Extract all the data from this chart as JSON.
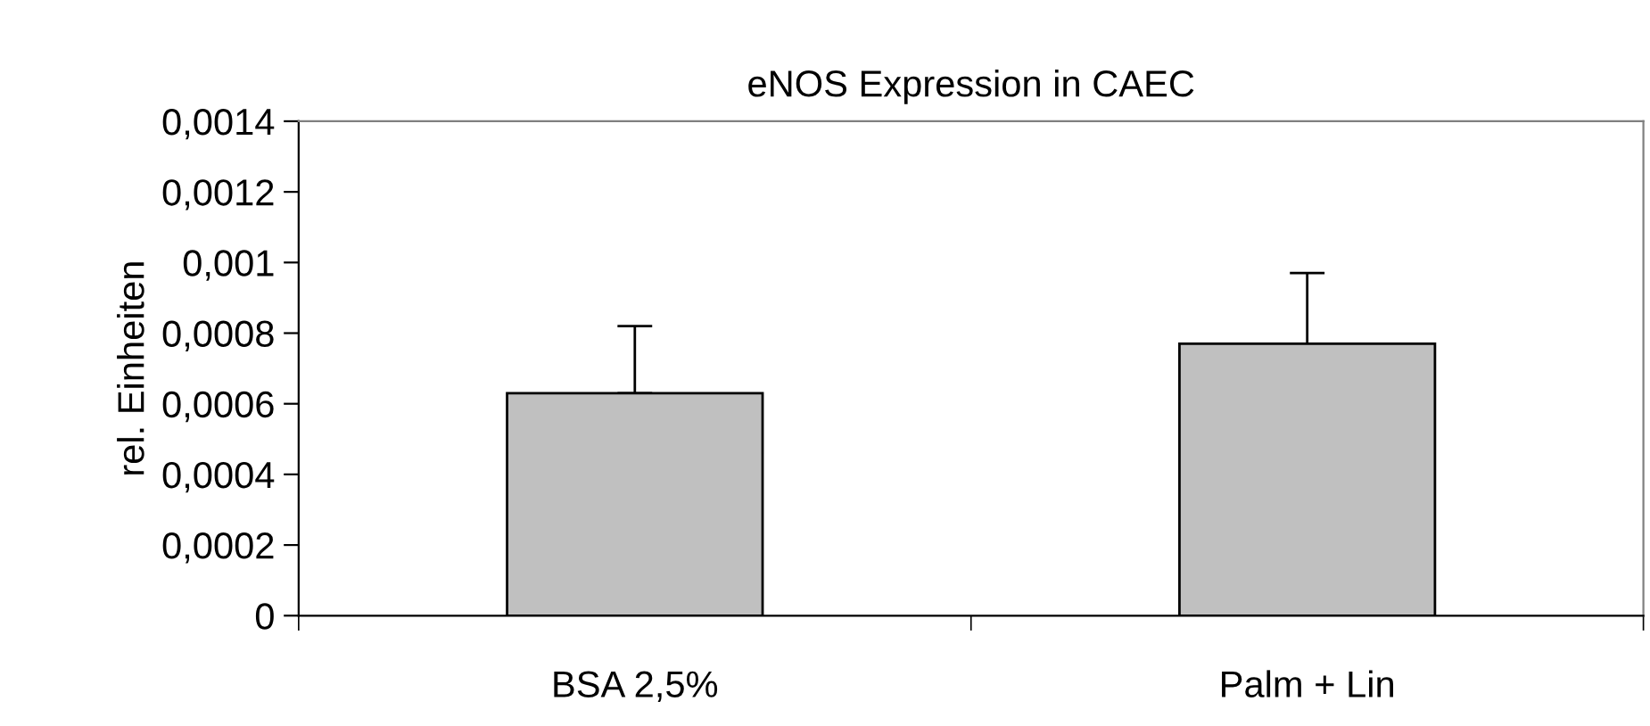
{
  "chart_data": {
    "type": "bar",
    "title": "eNOS Expression in CAEC",
    "ylabel": "rel. Einheiten",
    "categories": [
      "BSA 2,5%",
      "Palm + Lin"
    ],
    "values": [
      0.00063,
      0.00077
    ],
    "errors": [
      [
        0.00063,
        0.00082
      ],
      [
        0.00077,
        0.00097
      ]
    ],
    "color": "#c0c0c0",
    "ylim": [
      0,
      0.0014
    ],
    "yticks": [
      {
        "value": 0,
        "label": "0"
      },
      {
        "value": 0.0002,
        "label": "0,0002"
      },
      {
        "value": 0.0004,
        "label": "0,0004"
      },
      {
        "value": 0.0006,
        "label": "0,0006"
      },
      {
        "value": 0.0008,
        "label": "0,0008"
      },
      {
        "value": 0.001,
        "label": "0,001"
      },
      {
        "value": 0.0012,
        "label": "0,0012"
      },
      {
        "value": 0.0014,
        "label": "0,0014"
      }
    ],
    "grid": false,
    "legend": false
  }
}
